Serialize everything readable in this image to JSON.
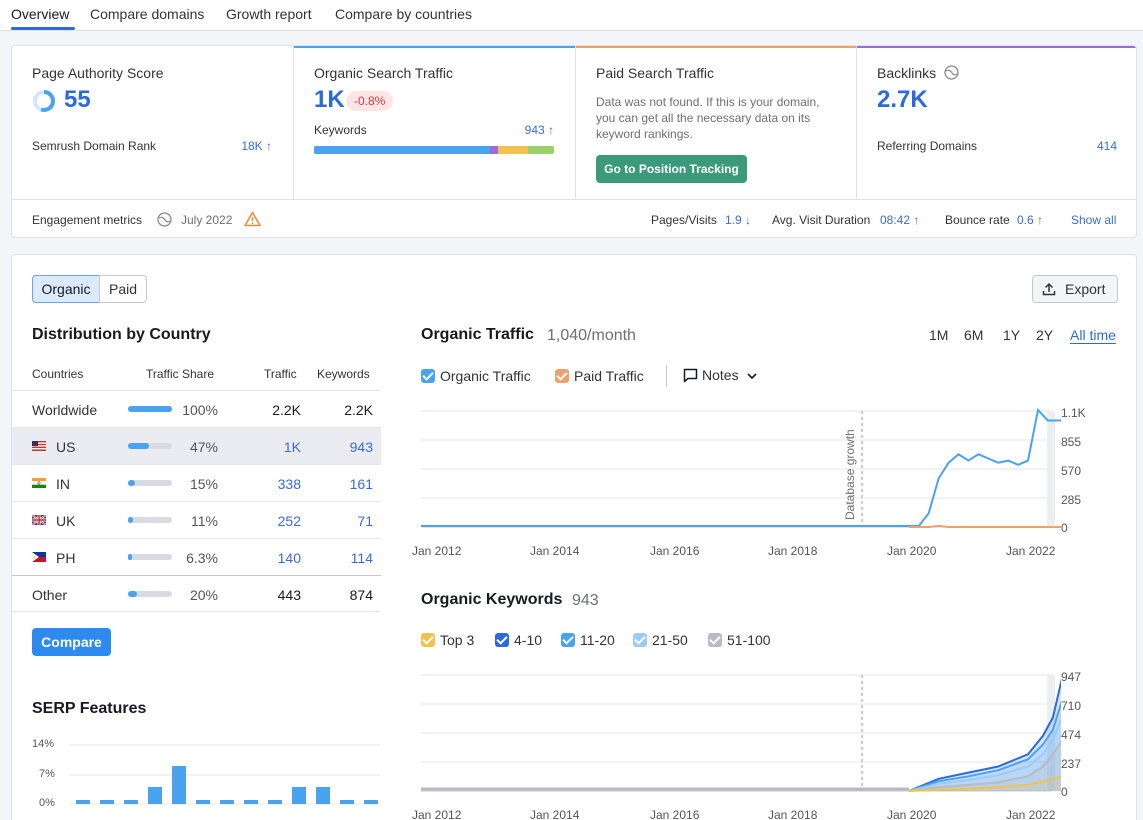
{
  "tabs": [
    "Overview",
    "Compare domains",
    "Growth report",
    "Compare by countries"
  ],
  "authority": {
    "title": "Page Authority Score",
    "value": "55",
    "rank_label": "Semrush Domain Rank",
    "rank_value": "18K ↑"
  },
  "organic": {
    "title": "Organic Search Traffic",
    "value": "1K",
    "change": "-0.8%",
    "keywords_label": "Keywords",
    "keywords_value": "943 ↑"
  },
  "paid": {
    "title": "Paid Search Traffic",
    "message": "Data was not found. If this is your domain, you can get all the necessary data on its keyword rankings.",
    "button": "Go to Position Tracking"
  },
  "backlinks": {
    "title": "Backlinks",
    "value": "2.7K",
    "ref_label": "Referring Domains",
    "ref_value": "414"
  },
  "engagement": {
    "label": "Engagement metrics",
    "date": "July 2022",
    "pages_label": "Pages/Visits",
    "pages_value": "1.9 ↓",
    "duration_label": "Avg. Visit Duration",
    "duration_value": "08:42 ↑",
    "bounce_label": "Bounce rate",
    "bounce_value": "0.6 ↑",
    "show_all": "Show all"
  },
  "toggle": {
    "organic": "Organic",
    "paid": "Paid"
  },
  "export": "Export",
  "distribution": {
    "title": "Distribution by Country",
    "headers": {
      "countries": "Countries",
      "share": "Traffic Share",
      "traffic": "Traffic",
      "keywords": "Keywords"
    },
    "rows": [
      {
        "country": "Worldwide",
        "share": "100%",
        "share_fraction": 1.0,
        "traffic": "2.2K",
        "keywords": "2.2K"
      },
      {
        "country": "US",
        "share": "47%",
        "share_fraction": 0.47,
        "traffic": "1K",
        "keywords": "943"
      },
      {
        "country": "IN",
        "share": "15%",
        "share_fraction": 0.15,
        "traffic": "338",
        "keywords": "161"
      },
      {
        "country": "UK",
        "share": "11%",
        "share_fraction": 0.11,
        "traffic": "252",
        "keywords": "71"
      },
      {
        "country": "PH",
        "share": "6.3%",
        "share_fraction": 0.063,
        "traffic": "140",
        "keywords": "114"
      },
      {
        "country": "Other",
        "share": "20%",
        "share_fraction": 0.2,
        "traffic": "443",
        "keywords": "874"
      }
    ],
    "compare": "Compare"
  },
  "serp": {
    "title": "SERP Features",
    "ticks": [
      "14%",
      "7%",
      "0%"
    ]
  },
  "traffic_chart": {
    "title": "Organic Traffic",
    "subtitle": "1,040/month",
    "ranges": [
      "1M",
      "6M",
      "1Y",
      "2Y",
      "All time"
    ],
    "legend": [
      "Organic Traffic",
      "Paid Traffic"
    ],
    "notes": "Notes",
    "annotation": "Database growth",
    "y_ticks": [
      "1.1K",
      "855",
      "570",
      "285",
      "0"
    ],
    "x_ticks": [
      "Jan 2012",
      "Jan 2014",
      "Jan 2016",
      "Jan 2018",
      "Jan 2020",
      "Jan 2022"
    ]
  },
  "keywords_chart": {
    "title": "Organic Keywords",
    "subtitle": "943",
    "legend": [
      "Top 3",
      "4-10",
      "11-20",
      "21-50",
      "51-100"
    ],
    "y_ticks": [
      "947",
      "710",
      "474",
      "237",
      "0"
    ],
    "x_ticks": [
      "Jan 2012",
      "Jan 2014",
      "Jan 2016",
      "Jan 2018",
      "Jan 2020",
      "Jan 2022"
    ]
  },
  "colors": {
    "accent": "#2b6bd9",
    "organic": "#4aa3ee",
    "paid": "#f0a06c",
    "green_btn": "#3a9a7a",
    "purple": "#9a6bd9"
  },
  "chart_data": [
    {
      "type": "line",
      "title": "Organic Traffic",
      "x": [
        "2019-12",
        "2020-02",
        "2020-04",
        "2020-06",
        "2020-08",
        "2020-10",
        "2020-12",
        "2021-02",
        "2021-04",
        "2021-06",
        "2021-08",
        "2021-10",
        "2021-12",
        "2022-02",
        "2022-04",
        "2022-06",
        "2022-07"
      ],
      "series": [
        {
          "name": "Organic Traffic",
          "values": [
            0,
            0,
            120,
            450,
            600,
            680,
            620,
            680,
            640,
            600,
            620,
            580,
            620,
            1100,
            1000,
            1000,
            1000
          ]
        },
        {
          "name": "Paid Traffic",
          "values": [
            0,
            0,
            0,
            10,
            0,
            0,
            0,
            0,
            0,
            0,
            0,
            0,
            0,
            0,
            0,
            0,
            0
          ]
        }
      ],
      "ylim": [
        0,
        1100
      ]
    },
    {
      "type": "area",
      "title": "Organic Keywords",
      "x": [
        "2019-12",
        "2020-06",
        "2020-12",
        "2021-06",
        "2021-12",
        "2022-03",
        "2022-05",
        "2022-07"
      ],
      "series": [
        {
          "name": "Top 3",
          "values": [
            0,
            10,
            20,
            30,
            50,
            80,
            100,
            120
          ]
        },
        {
          "name": "4-10",
          "values": [
            0,
            100,
            150,
            200,
            300,
            450,
            600,
            947
          ]
        },
        {
          "name": "11-20",
          "values": [
            0,
            80,
            120,
            170,
            260,
            380,
            500,
            760
          ]
        },
        {
          "name": "21-50",
          "values": [
            0,
            60,
            90,
            130,
            200,
            300,
            420,
            620
          ]
        },
        {
          "name": "51-100",
          "values": [
            0,
            30,
            50,
            70,
            120,
            200,
            300,
            420
          ]
        }
      ],
      "ylim": [
        0,
        947
      ]
    }
  ]
}
